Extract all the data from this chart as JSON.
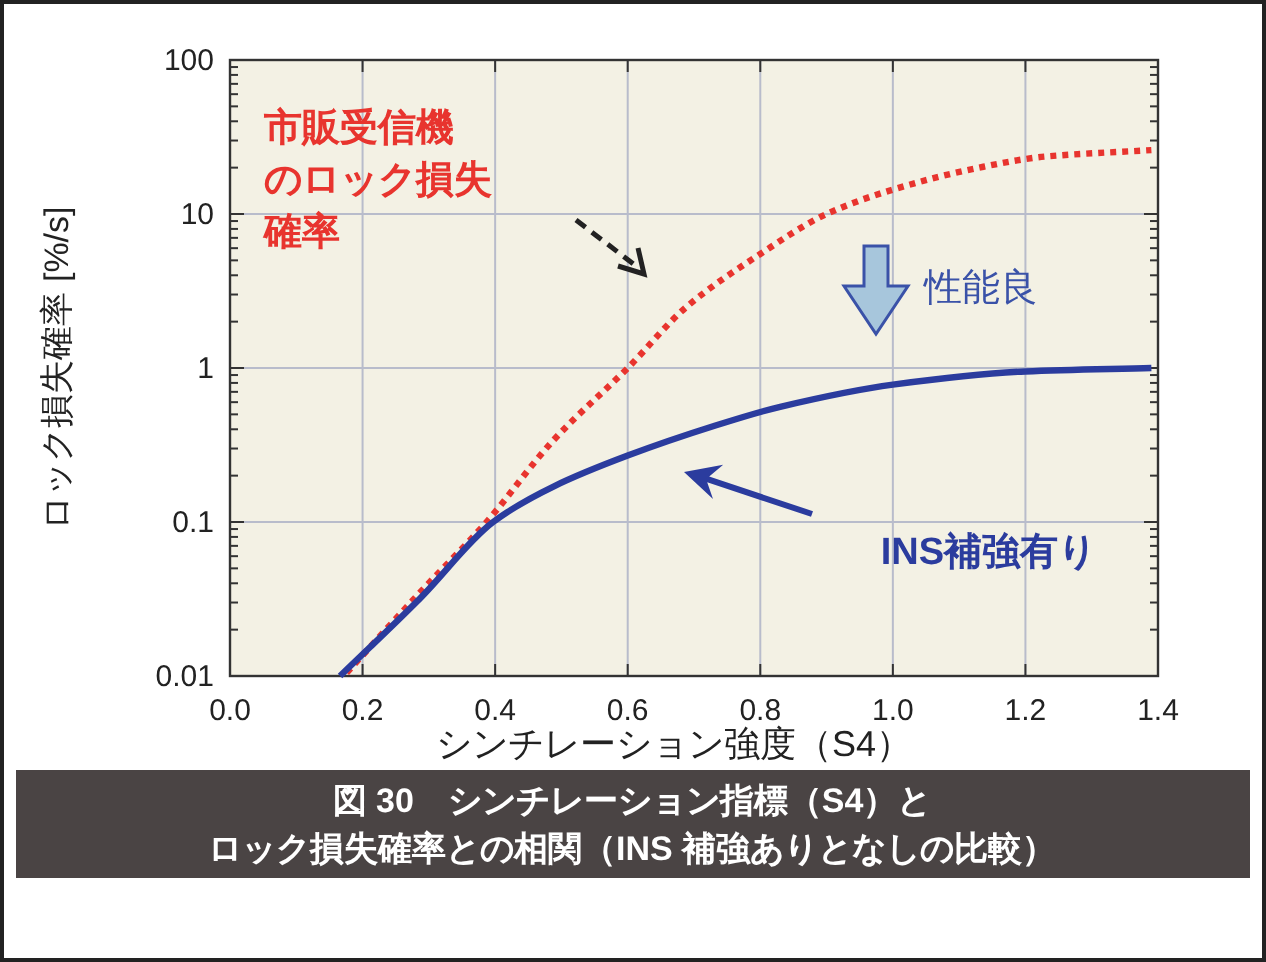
{
  "chart_data": {
    "type": "line",
    "xlabel": "シンチレーション強度（S4）",
    "ylabel": "ロック損失確率 [%/s]",
    "log": "y",
    "grid": true,
    "legend": false,
    "marker": "none",
    "xlim": [
      0,
      1.4
    ],
    "xticks": [
      {
        "value": 0,
        "label": "0.0"
      },
      {
        "value": 0.2,
        "label": "0.2"
      },
      {
        "value": 0.4,
        "label": "0.4"
      },
      {
        "value": 0.6,
        "label": "0.6"
      },
      {
        "value": 0.8,
        "label": "0.8"
      },
      {
        "value": 1,
        "label": "1.0"
      },
      {
        "value": 1.2,
        "label": "1.2"
      },
      {
        "value": 1.4,
        "label": "1.4"
      }
    ],
    "ylim": [
      0.01,
      100
    ],
    "yticks": [
      {
        "value": 0.01,
        "label": "0.01"
      },
      {
        "value": 0.1,
        "label": "0.1"
      },
      {
        "value": 1,
        "label": "1"
      },
      {
        "value": 10,
        "label": "10"
      },
      {
        "value": 100,
        "label": "100"
      }
    ],
    "series": [
      {
        "name": "市販受信機のロック損失確率",
        "color": "#e8342e",
        "line_style": "dotted",
        "x": [
          0.176,
          0.287,
          0.387,
          0.488,
          0.6,
          0.689,
          0.8,
          0.9,
          1.0,
          1.13,
          1.23,
          1.39
        ],
        "values": [
          0.0105,
          0.035,
          0.1,
          0.34,
          1,
          2.5,
          5.5,
          10,
          14.4,
          20,
          23.6,
          26
        ]
      },
      {
        "name": "INS補強有り",
        "color": "#2b3c9e",
        "line_style": "solid",
        "x": [
          0.166,
          0.287,
          0.397,
          0.488,
          0.6,
          0.73,
          0.83,
          1.0,
          1.2,
          1.39
        ],
        "values": [
          0.01,
          0.032,
          0.1,
          0.17,
          0.27,
          0.42,
          0.56,
          0.78,
          0.95,
          1.0
        ]
      }
    ],
    "annotations": [
      "性能良",
      "図 30　シンチレーション指標（S4）と",
      "ロック損失確率との相関（INS 補強ありとなしの比較）"
    ]
  }
}
